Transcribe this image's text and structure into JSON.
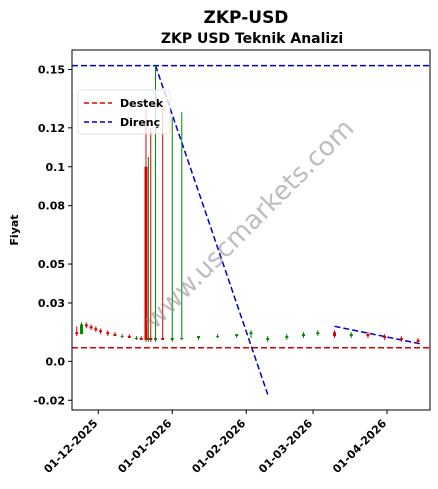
{
  "chart_data": {
    "type": "candlestick",
    "title": "ZKP-USD",
    "subtitle": "ZKP USD Teknik Analizi",
    "ylabel": "Fiyat",
    "xlabel": "",
    "ylim": [
      -0.025,
      0.16
    ],
    "xlim": [
      "2025-11-20",
      "2026-04-19"
    ],
    "y_ticks": [
      -0.02,
      0.0,
      0.03,
      0.05,
      0.08,
      0.1,
      0.12,
      0.15
    ],
    "y_tick_labels": [
      "-0.02",
      "0.0",
      "0.03",
      "0.05",
      "0.08",
      "0.1",
      "0.12",
      "0.15"
    ],
    "x_ticks": [
      "2025-12-01",
      "2026-01-01",
      "2026-02-01",
      "2026-03-01",
      "2026-04-01"
    ],
    "x_tick_labels": [
      "01-12-2025",
      "01-01-2026",
      "01-02-2026",
      "01-03-2026",
      "01-04-2026"
    ],
    "grid": false,
    "legend": {
      "placement": "upper-left",
      "entries": [
        {
          "label": "Destek",
          "color": "#dd0000",
          "style": "dashed"
        },
        {
          "label": "Direnç",
          "color": "#0000cc",
          "style": "dashed"
        }
      ]
    },
    "support_level": 0.007,
    "resistance_level": 0.152,
    "resistance_trendline": [
      [
        "2025-12-25",
        0.152
      ],
      [
        "2026-02-10",
        -0.017
      ]
    ],
    "resistance_trendline_2": [
      [
        "2026-03-10",
        0.018
      ],
      [
        "2026-04-15",
        0.009
      ]
    ],
    "candles": [
      {
        "date": "2025-11-22",
        "open": 0.015,
        "high": 0.018,
        "low": 0.013,
        "close": 0.014
      },
      {
        "date": "2025-11-24",
        "open": 0.014,
        "high": 0.02,
        "low": 0.014,
        "close": 0.019
      },
      {
        "date": "2025-11-26",
        "open": 0.019,
        "high": 0.02,
        "low": 0.017,
        "close": 0.018
      },
      {
        "date": "2025-11-28",
        "open": 0.018,
        "high": 0.019,
        "low": 0.016,
        "close": 0.017
      },
      {
        "date": "2025-11-30",
        "open": 0.017,
        "high": 0.018,
        "low": 0.015,
        "close": 0.016
      },
      {
        "date": "2025-12-02",
        "open": 0.016,
        "high": 0.017,
        "low": 0.014,
        "close": 0.015
      },
      {
        "date": "2025-12-05",
        "open": 0.015,
        "high": 0.016,
        "low": 0.013,
        "close": 0.014
      },
      {
        "date": "2025-12-08",
        "open": 0.014,
        "high": 0.015,
        "low": 0.013,
        "close": 0.013
      },
      {
        "date": "2025-12-11",
        "open": 0.013,
        "high": 0.014,
        "low": 0.012,
        "close": 0.013
      },
      {
        "date": "2025-12-14",
        "open": 0.013,
        "high": 0.014,
        "low": 0.012,
        "close": 0.012
      },
      {
        "date": "2025-12-17",
        "open": 0.012,
        "high": 0.013,
        "low": 0.011,
        "close": 0.012
      },
      {
        "date": "2025-12-19",
        "open": 0.012,
        "high": 0.013,
        "low": 0.011,
        "close": 0.011
      },
      {
        "date": "2025-12-21",
        "open": 0.1,
        "high": 0.13,
        "low": 0.01,
        "close": 0.011
      },
      {
        "date": "2025-12-22",
        "open": 0.011,
        "high": 0.105,
        "low": 0.01,
        "close": 0.012
      },
      {
        "date": "2025-12-23",
        "open": 0.012,
        "high": 0.12,
        "low": 0.01,
        "close": 0.011
      },
      {
        "date": "2025-12-25",
        "open": 0.011,
        "high": 0.152,
        "low": 0.01,
        "close": 0.012
      },
      {
        "date": "2025-12-28",
        "open": 0.012,
        "high": 0.13,
        "low": 0.011,
        "close": 0.011
      },
      {
        "date": "2026-01-01",
        "open": 0.011,
        "high": 0.125,
        "low": 0.01,
        "close": 0.012
      },
      {
        "date": "2026-01-05",
        "open": 0.012,
        "high": 0.128,
        "low": 0.011,
        "close": 0.012
      },
      {
        "date": "2026-01-12",
        "open": 0.012,
        "high": 0.013,
        "low": 0.011,
        "close": 0.013
      },
      {
        "date": "2026-01-20",
        "open": 0.013,
        "high": 0.014,
        "low": 0.012,
        "close": 0.013
      },
      {
        "date": "2026-01-28",
        "open": 0.013,
        "high": 0.014,
        "low": 0.012,
        "close": 0.014
      },
      {
        "date": "2026-02-03",
        "open": 0.014,
        "high": 0.016,
        "low": 0.012,
        "close": 0.015
      },
      {
        "date": "2026-02-10",
        "open": 0.011,
        "high": 0.013,
        "low": 0.01,
        "close": 0.012
      },
      {
        "date": "2026-02-18",
        "open": 0.012,
        "high": 0.014,
        "low": 0.011,
        "close": 0.013
      },
      {
        "date": "2026-02-25",
        "open": 0.013,
        "high": 0.015,
        "low": 0.012,
        "close": 0.014
      },
      {
        "date": "2026-03-03",
        "open": 0.014,
        "high": 0.016,
        "low": 0.013,
        "close": 0.015
      },
      {
        "date": "2026-03-10",
        "open": 0.015,
        "high": 0.016,
        "low": 0.012,
        "close": 0.013
      },
      {
        "date": "2026-03-17",
        "open": 0.013,
        "high": 0.015,
        "low": 0.012,
        "close": 0.014
      },
      {
        "date": "2026-03-24",
        "open": 0.014,
        "high": 0.015,
        "low": 0.012,
        "close": 0.013
      },
      {
        "date": "2026-03-31",
        "open": 0.013,
        "high": 0.014,
        "low": 0.011,
        "close": 0.012
      },
      {
        "date": "2026-04-07",
        "open": 0.012,
        "high": 0.013,
        "low": 0.01,
        "close": 0.011
      },
      {
        "date": "2026-04-14",
        "open": 0.011,
        "high": 0.012,
        "low": 0.009,
        "close": 0.01
      }
    ],
    "watermark": "www.uscmarkets.com",
    "colors": {
      "up": "#008800",
      "down": "#dd0000",
      "support": "#dd0000",
      "resistance": "#0000cc"
    }
  }
}
